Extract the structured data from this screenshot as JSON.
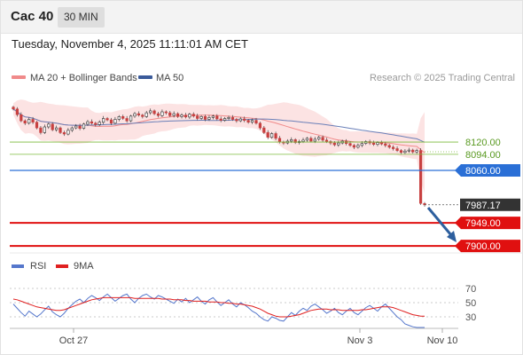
{
  "header": {
    "title": "Cac 40",
    "timeframe": "30 MIN"
  },
  "datetime": "Tuesday, November 4, 2025 11:11:01 AM CET",
  "legend": [
    {
      "label": "MA 20 + Bollinger Bands",
      "color": "#f08a8a"
    },
    {
      "label": "MA 50",
      "color": "#3a5a9a"
    }
  ],
  "copyright": "Research © 2025 Trading Central",
  "rsi_legend": [
    {
      "label": "RSI",
      "color": "#5577cc"
    },
    {
      "label": "9MA",
      "color": "#e02020"
    }
  ],
  "chart_data": {
    "type": "candlestick",
    "price_axis": {
      "ylim": [
        7889,
        8231
      ]
    },
    "levels": [
      {
        "value": "8120.00",
        "kind": "resistance",
        "color": "#7cbb3c"
      },
      {
        "value": "8094.00",
        "kind": "resistance",
        "color": "#7cbb3c"
      },
      {
        "value": "8060.00",
        "kind": "pivot",
        "color": "#2a6fd6"
      },
      {
        "value": "7987.17",
        "kind": "last-price",
        "color": "#333333"
      },
      {
        "value": "7949.00",
        "kind": "support",
        "color": "#e01010"
      },
      {
        "value": "7900.00",
        "kind": "support",
        "color": "#e01010"
      }
    ],
    "x_ticks": [
      "Oct 27",
      "Nov 3",
      "Nov 10"
    ],
    "close": [
      8190,
      8178,
      8165,
      8160,
      8168,
      8162,
      8150,
      8140,
      8152,
      8158,
      8146,
      8150,
      8140,
      8137,
      8145,
      8150,
      8154,
      8149,
      8158,
      8163,
      8160,
      8157,
      8162,
      8170,
      8167,
      8160,
      8168,
      8174,
      8170,
      8165,
      8175,
      8180,
      8177,
      8174,
      8182,
      8186,
      8180,
      8176,
      8184,
      8182,
      8176,
      8180,
      8174,
      8177,
      8173,
      8179,
      8175,
      8170,
      8174,
      8168,
      8172,
      8175,
      8169,
      8166,
      8170,
      8172,
      8168,
      8165,
      8169,
      8166,
      8162,
      8166,
      8160,
      8150,
      8140,
      8130,
      8138,
      8128,
      8120,
      8118,
      8122,
      8125,
      8119,
      8121,
      8124,
      8128,
      8122,
      8126,
      8130,
      8124,
      8121,
      8118,
      8114,
      8118,
      8122,
      8117,
      8113,
      8109,
      8113,
      8117,
      8121,
      8118,
      8115,
      8119,
      8116,
      8113,
      8109,
      8106,
      8102,
      8098,
      8101,
      8103,
      8099,
      8102,
      7990,
      7987.17
    ],
    "rsi": {
      "ylim": [
        15,
        85
      ],
      "ticks": [
        70,
        50,
        30
      ],
      "rsi": [
        48,
        42,
        36,
        31,
        38,
        34,
        30,
        34,
        40,
        45,
        37,
        33,
        30,
        35,
        42,
        47,
        52,
        55,
        50,
        56,
        60,
        57,
        53,
        58,
        62,
        57,
        52,
        56,
        60,
        62,
        55,
        50,
        56,
        60,
        62,
        58,
        55,
        60,
        58,
        55,
        52,
        49,
        55,
        51,
        56,
        50,
        54,
        58,
        52,
        48,
        54,
        57,
        51,
        46,
        50,
        54,
        48,
        44,
        50,
        47,
        43,
        38,
        35,
        30,
        26,
        24,
        30,
        28,
        25,
        24,
        30,
        36,
        32,
        38,
        42,
        39,
        45,
        48,
        44,
        40,
        35,
        38,
        42,
        36,
        33,
        38,
        42,
        36,
        33,
        38,
        43,
        46,
        42,
        38,
        44,
        48,
        42,
        36,
        30,
        26,
        20,
        18,
        16,
        15,
        15,
        15
      ],
      "ma9": [
        55,
        54,
        52,
        50,
        48,
        46,
        44,
        43,
        42,
        41,
        40,
        39,
        39,
        40,
        42,
        44,
        46,
        48,
        50,
        52,
        54,
        55,
        56,
        57,
        57,
        57,
        57,
        57,
        57,
        57,
        57,
        56,
        56,
        56,
        56,
        56,
        56,
        56,
        55,
        55,
        55,
        54,
        54,
        54,
        53,
        53,
        52,
        52,
        52,
        52,
        51,
        51,
        51,
        50,
        50,
        49,
        49,
        48,
        48,
        47,
        46,
        45,
        43,
        41,
        38,
        35,
        33,
        31,
        30,
        30,
        30,
        31,
        32,
        33,
        35,
        37,
        39,
        40,
        41,
        41,
        41,
        40,
        40,
        40,
        39,
        39,
        39,
        39,
        39,
        40,
        40,
        41,
        42,
        43,
        44,
        44,
        44,
        43,
        41,
        39,
        37,
        35,
        33,
        32,
        31,
        31
      ]
    }
  }
}
